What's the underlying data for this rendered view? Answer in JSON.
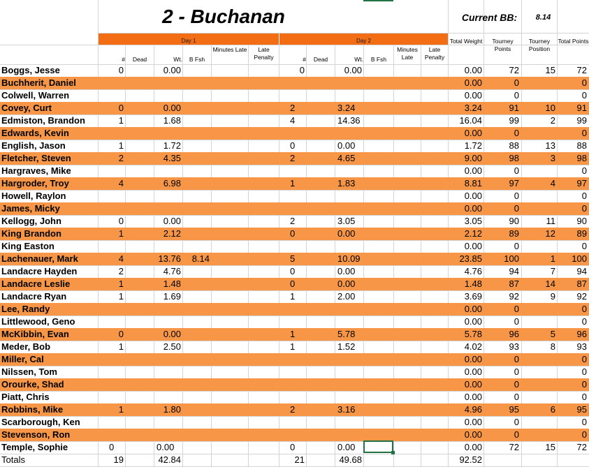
{
  "title": "2 - Buchanan",
  "current_bb_label": "Current BB:",
  "current_bb_value": "8.14",
  "day1_label": "Day 1",
  "day2_label": "Day 2",
  "headers": {
    "d1_count": "#",
    "d1_dead": "Dead",
    "d1_wt": "Wt.",
    "d1_bfsh": "B Fsh",
    "d1_min": "Minutes Late",
    "d1_late": "Late Penalty",
    "d2_count": "#",
    "d2_dead": "Dead",
    "d2_wt": "Wt.",
    "d2_bfsh": "B Fsh",
    "d2_min": "Minutes Late",
    "d2_late": "Late Penalty",
    "total_weight": "Total Weight",
    "tourney_points": "Tourney Points",
    "tourney_position": "Tourney Position",
    "total_points": "Total Points"
  },
  "rows": [
    {
      "name": "Boggs, Jesse",
      "d1c": "0",
      "d1w": "0.00",
      "d1b": "",
      "d2c": "0",
      "d2w": "0.00",
      "tw": "0.00",
      "tp": "72",
      "pos": "15",
      "pts": "72",
      "alt": false,
      "d1align": "r",
      "d2align": "r"
    },
    {
      "name": "Buchherit, Daniel",
      "d1c": "",
      "d1w": "",
      "d1b": "",
      "d2c": "",
      "d2w": "",
      "tw": "0.00",
      "tp": "0",
      "pos": "",
      "pts": "0",
      "alt": true,
      "d1align": "r",
      "d2align": "r"
    },
    {
      "name": "Colwell, Warren",
      "d1c": "",
      "d1w": "",
      "d1b": "",
      "d2c": "",
      "d2w": "",
      "tw": "0.00",
      "tp": "0",
      "pos": "",
      "pts": "0",
      "alt": false,
      "d1align": "r",
      "d2align": "r"
    },
    {
      "name": "Covey, Curt",
      "d1c": "0",
      "d1w": "0.00",
      "d1b": "",
      "d2c": "2",
      "d2w": "3.24",
      "tw": "3.24",
      "tp": "91",
      "pos": "10",
      "pts": "91",
      "alt": true,
      "d1align": "r",
      "d2align": "l"
    },
    {
      "name": "Edmiston, Brandon",
      "d1c": "1",
      "d1w": "1.68",
      "d1b": "",
      "d2c": "4",
      "d2w": "14.36",
      "tw": "16.04",
      "tp": "99",
      "pos": "2",
      "pts": "99",
      "alt": false,
      "d1align": "r",
      "d2align": "l"
    },
    {
      "name": "Edwards, Kevin",
      "d1c": "",
      "d1w": "",
      "d1b": "",
      "d2c": "",
      "d2w": "",
      "tw": "0.00",
      "tp": "0",
      "pos": "",
      "pts": "0",
      "alt": true,
      "d1align": "r",
      "d2align": "r"
    },
    {
      "name": "English, Jason",
      "d1c": "1",
      "d1w": "1.72",
      "d1b": "",
      "d2c": "0",
      "d2w": "0.00",
      "tw": "1.72",
      "tp": "88",
      "pos": "13",
      "pts": "88",
      "alt": false,
      "d1align": "r",
      "d2align": "l"
    },
    {
      "name": "Fletcher, Steven",
      "d1c": "2",
      "d1w": "4.35",
      "d1b": "",
      "d2c": "2",
      "d2w": "4.65",
      "tw": "9.00",
      "tp": "98",
      "pos": "3",
      "pts": "98",
      "alt": true,
      "d1align": "r",
      "d2align": "l"
    },
    {
      "name": "Hargraves, Mike",
      "d1c": "",
      "d1w": "",
      "d1b": "",
      "d2c": "",
      "d2w": "",
      "tw": "0.00",
      "tp": "0",
      "pos": "",
      "pts": "0",
      "alt": false,
      "d1align": "r",
      "d2align": "r"
    },
    {
      "name": "Hargroder, Troy",
      "d1c": "4",
      "d1w": "6.98",
      "d1b": "",
      "d2c": "1",
      "d2w": "1.83",
      "tw": "8.81",
      "tp": "97",
      "pos": "4",
      "pts": "97",
      "alt": true,
      "d1align": "r",
      "d2align": "l"
    },
    {
      "name": "Howell, Raylon",
      "d1c": "",
      "d1w": "",
      "d1b": "",
      "d2c": "",
      "d2w": "",
      "tw": "0.00",
      "tp": "0",
      "pos": "",
      "pts": "0",
      "alt": false,
      "d1align": "r",
      "d2align": "r"
    },
    {
      "name": "James, Micky",
      "d1c": "",
      "d1w": "",
      "d1b": "",
      "d2c": "",
      "d2w": "",
      "tw": "0.00",
      "tp": "0",
      "pos": "",
      "pts": "0",
      "alt": true,
      "d1align": "r",
      "d2align": "r"
    },
    {
      "name": "Kellogg, John",
      "d1c": "0",
      "d1w": "0.00",
      "d1b": "",
      "d2c": "2",
      "d2w": "3.05",
      "tw": "3.05",
      "tp": "90",
      "pos": "11",
      "pts": "90",
      "alt": false,
      "d1align": "r",
      "d2align": "l"
    },
    {
      "name": "King Brandon",
      "d1c": "1",
      "d1w": "2.12",
      "d1b": "",
      "d2c": "0",
      "d2w": "0.00",
      "tw": "2.12",
      "tp": "89",
      "pos": "12",
      "pts": "89",
      "alt": true,
      "d1align": "r",
      "d2align": "l"
    },
    {
      "name": "King Easton",
      "d1c": "",
      "d1w": "",
      "d1b": "",
      "d2c": "",
      "d2w": "",
      "tw": "0.00",
      "tp": "0",
      "pos": "",
      "pts": "0",
      "alt": false,
      "d1align": "r",
      "d2align": "r"
    },
    {
      "name": "Lachenauer, Mark",
      "d1c": "4",
      "d1w": "13.76",
      "d1b": "8.14",
      "d2c": "5",
      "d2w": "10.09",
      "tw": "23.85",
      "tp": "100",
      "pos": "1",
      "pts": "100",
      "alt": true,
      "d1align": "r",
      "d2align": "l"
    },
    {
      "name": "Landacre Hayden",
      "d1c": "2",
      "d1w": "4.76",
      "d1b": "",
      "d2c": "0",
      "d2w": "0.00",
      "tw": "4.76",
      "tp": "94",
      "pos": "7",
      "pts": "94",
      "alt": false,
      "d1align": "r",
      "d2align": "l"
    },
    {
      "name": "Landacre Leslie",
      "d1c": "1",
      "d1w": "1.48",
      "d1b": "",
      "d2c": "0",
      "d2w": "0.00",
      "tw": "1.48",
      "tp": "87",
      "pos": "14",
      "pts": "87",
      "alt": true,
      "d1align": "r",
      "d2align": "l"
    },
    {
      "name": "Landacre Ryan",
      "d1c": "1",
      "d1w": "1.69",
      "d1b": "",
      "d2c": "1",
      "d2w": "2.00",
      "tw": "3.69",
      "tp": "92",
      "pos": "9",
      "pts": "92",
      "alt": false,
      "d1align": "r",
      "d2align": "l"
    },
    {
      "name": "Lee, Randy",
      "d1c": "",
      "d1w": "",
      "d1b": "",
      "d2c": "",
      "d2w": "",
      "tw": "0.00",
      "tp": "0",
      "pos": "",
      "pts": "0",
      "alt": true,
      "d1align": "r",
      "d2align": "r"
    },
    {
      "name": "Littlewood, Geno",
      "d1c": "",
      "d1w": "",
      "d1b": "",
      "d2c": "",
      "d2w": "",
      "tw": "0.00",
      "tp": "0",
      "pos": "",
      "pts": "0",
      "alt": false,
      "d1align": "r",
      "d2align": "r"
    },
    {
      "name": "McKibbin, Evan",
      "d1c": "0",
      "d1w": "0.00",
      "d1b": "",
      "d2c": "1",
      "d2w": "5.78",
      "tw": "5.78",
      "tp": "96",
      "pos": "5",
      "pts": "96",
      "alt": true,
      "d1align": "r",
      "d2align": "l"
    },
    {
      "name": "Meder, Bob",
      "d1c": "1",
      "d1w": "2.50",
      "d1b": "",
      "d2c": "1",
      "d2w": "1.52",
      "tw": "4.02",
      "tp": "93",
      "pos": "8",
      "pts": "93",
      "alt": false,
      "d1align": "r",
      "d2align": "l"
    },
    {
      "name": "Miller, Cal",
      "d1c": "",
      "d1w": "",
      "d1b": "",
      "d2c": "",
      "d2w": "",
      "tw": "0.00",
      "tp": "0",
      "pos": "",
      "pts": "0",
      "alt": true,
      "d1align": "r",
      "d2align": "r"
    },
    {
      "name": "Nilssen, Tom",
      "d1c": "",
      "d1w": "",
      "d1b": "",
      "d2c": "",
      "d2w": "",
      "tw": "0.00",
      "tp": "0",
      "pos": "",
      "pts": "0",
      "alt": false,
      "d1align": "r",
      "d2align": "r"
    },
    {
      "name": "Orourke, Shad",
      "d1c": "",
      "d1w": "",
      "d1b": "",
      "d2c": "",
      "d2w": "",
      "tw": "0.00",
      "tp": "0",
      "pos": "",
      "pts": "0",
      "alt": true,
      "d1align": "r",
      "d2align": "r"
    },
    {
      "name": "Piatt, Chris",
      "d1c": "",
      "d1w": "",
      "d1b": "",
      "d2c": "",
      "d2w": "",
      "tw": "0.00",
      "tp": "0",
      "pos": "",
      "pts": "0",
      "alt": false,
      "d1align": "r",
      "d2align": "r"
    },
    {
      "name": "Robbins, Mike",
      "d1c": "1",
      "d1w": "1.80",
      "d1b": "",
      "d2c": "2",
      "d2w": "3.16",
      "tw": "4.96",
      "tp": "95",
      "pos": "6",
      "pts": "95",
      "alt": true,
      "d1align": "r",
      "d2align": "l"
    },
    {
      "name": "Scarborough, Ken",
      "d1c": "",
      "d1w": "",
      "d1b": "",
      "d2c": "",
      "d2w": "",
      "tw": "0.00",
      "tp": "0",
      "pos": "",
      "pts": "0",
      "alt": false,
      "d1align": "r",
      "d2align": "r"
    },
    {
      "name": "Stevenson, Ron",
      "d1c": "",
      "d1w": "",
      "d1b": "",
      "d2c": "",
      "d2w": "",
      "tw": "0.00",
      "tp": "0",
      "pos": "",
      "pts": "0",
      "alt": true,
      "d1align": "r",
      "d2align": "r"
    },
    {
      "name": "Temple, Sophie",
      "d1c": "0",
      "d1w": "0.00",
      "d1b": "",
      "d2c": "0",
      "d2w": "0.00",
      "tw": "0.00",
      "tp": "72",
      "pos": "15",
      "pts": "72",
      "alt": false,
      "d1align": "l",
      "d2align": "l"
    }
  ],
  "totals": {
    "label": "Totals",
    "d1_count": "19",
    "d1_wt": "42.84",
    "d2_count": "21",
    "d2_wt": "49.68",
    "total_weight": "92.52"
  },
  "colors": {
    "orange_row": "#f79646",
    "day_band": "#f26d14",
    "selection": "#217346"
  }
}
